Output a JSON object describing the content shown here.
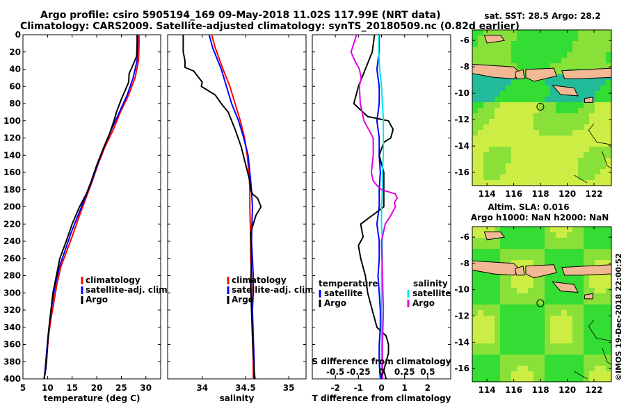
{
  "header": {
    "line1": "Argo profile: csiro 5905194_169 09-May-2018 11.02S 117.99E (NRT data)",
    "line2": "Climatology: CARS2009. Satellite-adjusted climatology: synTS_20180509.nc (0.82d earlier)"
  },
  "maps": {
    "top_title": "sat. SST: 28.5 Argo: 28.2",
    "bottom_title_1": "Altim. SLA: 0.016",
    "bottom_title_2": "Argo h1000: NaN h2000: NaN"
  },
  "credit": "©IMOS 19-Dec-2018 22:00:52",
  "legends": {
    "temp": [
      "climatology",
      "satellite-adj. clim.",
      "Argo"
    ],
    "sal": [
      "climatology",
      "satellite-adj. clim.",
      "Argo"
    ],
    "diff_temp_title": "temperature",
    "diff_sal_title": "salinity",
    "diff_temp": [
      "satellite",
      "Argo"
    ],
    "diff_sal": [
      "satellite",
      "Argo"
    ],
    "diff_top_axis_label": "S difference from climatology"
  },
  "colors": {
    "climatology": "#ff0000",
    "satellite": "#0000ff",
    "argo": "#000000",
    "sal_sat": "#00e5ee",
    "sal_argo": "#e000e0",
    "land": "#f2b894",
    "ocean_green": "#33dd33",
    "ocean_yellow": "#ccee44",
    "ocean_teal": "#22bb99"
  },
  "chart_data": [
    {
      "type": "line",
      "title": "",
      "xlabel": "temperature (deg C)",
      "ylabel": "",
      "xlim": [
        5,
        33
      ],
      "ylim": [
        400,
        0
      ],
      "xticks": [
        5,
        10,
        15,
        20,
        25,
        30
      ],
      "yticks": [
        0,
        20,
        40,
        60,
        80,
        100,
        120,
        140,
        160,
        180,
        200,
        220,
        240,
        260,
        280,
        300,
        320,
        340,
        360,
        380,
        400
      ],
      "series": [
        {
          "name": "climatology",
          "x": [
            28.6,
            28.6,
            28.5,
            27.8,
            26.5,
            24.8,
            23.4,
            21.7,
            20.3,
            19.1,
            17.8,
            16.5,
            15.3,
            14.0,
            12.7,
            11.9,
            11.3,
            10.7,
            10.2,
            9.9,
            9.6,
            9.3
          ],
          "y": [
            0,
            10,
            30,
            50,
            70,
            90,
            110,
            130,
            150,
            170,
            190,
            210,
            230,
            250,
            270,
            290,
            310,
            330,
            350,
            370,
            390,
            400
          ]
        },
        {
          "name": "satellite-adj. clim.",
          "x": [
            28.3,
            28.3,
            28.2,
            27.4,
            26.2,
            24.6,
            23.0,
            21.5,
            20.2,
            19.0,
            17.6,
            16.2,
            14.8,
            13.6,
            12.4,
            11.6,
            11.0,
            10.5,
            10.1,
            9.8,
            9.5,
            9.3
          ],
          "y": [
            0,
            10,
            30,
            50,
            70,
            90,
            110,
            130,
            150,
            170,
            190,
            210,
            230,
            250,
            270,
            290,
            310,
            330,
            350,
            370,
            390,
            400
          ]
        },
        {
          "name": "Argo",
          "x": [
            28.2,
            28.2,
            28.1,
            27.0,
            26.6,
            26.5,
            25.0,
            24.0,
            23.5,
            22.6,
            21.5,
            20.1,
            18.9,
            17.9,
            16.5,
            15.0,
            13.8,
            12.5,
            11.8,
            11.1,
            10.7,
            10.3,
            10.0,
            9.8,
            9.6,
            9.3
          ],
          "y": [
            0,
            10,
            25,
            40,
            45,
            55,
            75,
            90,
            100,
            115,
            130,
            150,
            170,
            185,
            200,
            220,
            240,
            260,
            280,
            300,
            320,
            340,
            360,
            380,
            390,
            400
          ]
        }
      ]
    },
    {
      "type": "line",
      "title": "",
      "xlabel": "salinity",
      "ylabel": "",
      "xlim": [
        33.6,
        35.2
      ],
      "ylim": [
        400,
        0
      ],
      "xticks": [
        34,
        34.5,
        35
      ],
      "xtick_labels": [
        "34",
        "34.5",
        "35"
      ],
      "series": [
        {
          "name": "climatology",
          "x": [
            34.11,
            34.15,
            34.24,
            34.32,
            34.38,
            34.44,
            34.49,
            34.52,
            34.54,
            34.55,
            34.55,
            34.56,
            34.56,
            34.57,
            34.57,
            34.58,
            34.58,
            34.59,
            34.59
          ],
          "y": [
            0,
            15,
            40,
            60,
            80,
            100,
            120,
            140,
            160,
            180,
            200,
            240,
            260,
            280,
            300,
            320,
            350,
            380,
            400
          ]
        },
        {
          "name": "satellite-adj. clim.",
          "x": [
            34.08,
            34.12,
            34.22,
            34.28,
            34.34,
            34.42,
            34.48,
            34.53,
            34.55,
            34.57,
            34.58,
            34.57,
            34.58,
            34.59,
            34.59,
            34.58,
            34.59,
            34.6,
            34.6
          ],
          "y": [
            0,
            15,
            40,
            60,
            80,
            100,
            120,
            140,
            160,
            180,
            200,
            240,
            260,
            280,
            300,
            320,
            350,
            380,
            400
          ]
        },
        {
          "name": "Argo",
          "x": [
            33.78,
            33.78,
            33.8,
            33.8,
            33.9,
            34.0,
            33.99,
            34.15,
            34.22,
            34.3,
            34.38,
            34.45,
            34.5,
            34.55,
            34.56,
            34.58,
            34.64,
            34.68,
            34.62,
            34.56,
            34.57,
            34.56,
            34.57,
            34.58,
            34.59,
            34.6,
            34.61
          ],
          "y": [
            0,
            20,
            30,
            38,
            42,
            55,
            60,
            70,
            80,
            90,
            110,
            130,
            150,
            170,
            180,
            185,
            190,
            200,
            210,
            230,
            260,
            290,
            320,
            350,
            370,
            390,
            400
          ]
        }
      ]
    },
    {
      "type": "line",
      "title": "",
      "xlabel": "T difference from climatology",
      "x2label": "S difference from climatology",
      "ylabel": "",
      "xlim": [
        -3,
        3
      ],
      "ylim": [
        400,
        0
      ],
      "xticks": [
        -2,
        -1,
        0,
        1,
        2
      ],
      "x2ticks": [
        -0.5,
        -0.25,
        0,
        0.25,
        0.5
      ],
      "series": [
        {
          "name": "temperature satellite",
          "axis": "T",
          "x": [
            -0.1,
            -0.1,
            -0.2,
            -0.1,
            -0.1,
            -0.2,
            -0.1,
            -0.1,
            -0.05,
            -0.1,
            -0.1,
            -0.2,
            -0.1,
            -0.1,
            -0.15,
            -0.1,
            -0.05,
            -0.05,
            -0.1,
            -0.1,
            -0.05
          ],
          "y": [
            0,
            20,
            40,
            60,
            80,
            100,
            120,
            140,
            160,
            180,
            200,
            220,
            240,
            260,
            280,
            300,
            320,
            340,
            360,
            380,
            400
          ]
        },
        {
          "name": "temperature Argo",
          "axis": "T",
          "x": [
            -0.3,
            -0.4,
            -0.7,
            -1.0,
            -1.2,
            -0.6,
            0.3,
            0.5,
            0.4,
            0.1,
            -0.1,
            0.1,
            0.1,
            -0.9,
            -0.8,
            -1.0,
            -0.9,
            -0.7,
            -0.6,
            -0.4,
            -0.2,
            0.2,
            0.3,
            0.3,
            0.2,
            0.1,
            0.2
          ],
          "y": [
            0,
            20,
            40,
            60,
            80,
            95,
            100,
            110,
            120,
            125,
            140,
            160,
            200,
            220,
            235,
            245,
            260,
            280,
            300,
            320,
            340,
            350,
            360,
            370,
            380,
            390,
            400
          ]
        },
        {
          "name": "salinity satellite",
          "axis": "S",
          "x": [
            -0.03,
            -0.03,
            -0.02,
            0.0,
            0.01,
            0.02,
            0.02,
            0.02,
            0.01,
            0.01,
            0.0,
            0.0,
            0.01,
            0.01,
            0.0,
            0.0,
            0.0,
            0.0,
            0.0,
            0.0,
            0.0
          ],
          "y": [
            0,
            20,
            40,
            60,
            80,
            100,
            120,
            140,
            160,
            180,
            200,
            220,
            240,
            260,
            280,
            300,
            320,
            340,
            360,
            380,
            400
          ]
        },
        {
          "name": "salinity Argo",
          "axis": "S",
          "x": [
            -0.27,
            -0.3,
            -0.33,
            -0.29,
            -0.24,
            -0.22,
            -0.24,
            -0.23,
            -0.19,
            -0.09,
            -0.09,
            -0.11,
            -0.09,
            -0.05,
            0.0,
            0.15,
            0.17,
            0.14,
            0.15,
            0.1,
            0.04,
            0.0,
            0.01,
            0.02,
            0.01,
            0.01
          ],
          "y": [
            0,
            10,
            20,
            30,
            40,
            50,
            60,
            80,
            100,
            120,
            140,
            160,
            170,
            175,
            180,
            185,
            190,
            195,
            200,
            210,
            220,
            240,
            280,
            320,
            360,
            400
          ]
        }
      ]
    }
  ],
  "map_axes": {
    "lon_ticks": [
      "114",
      "116",
      "118",
      "120",
      "122"
    ],
    "lat_ticks": [
      "-6",
      "-8",
      "-10",
      "-12",
      "-14",
      "-16"
    ],
    "argo_location": {
      "lon": 117.99,
      "lat": -11.02
    }
  }
}
